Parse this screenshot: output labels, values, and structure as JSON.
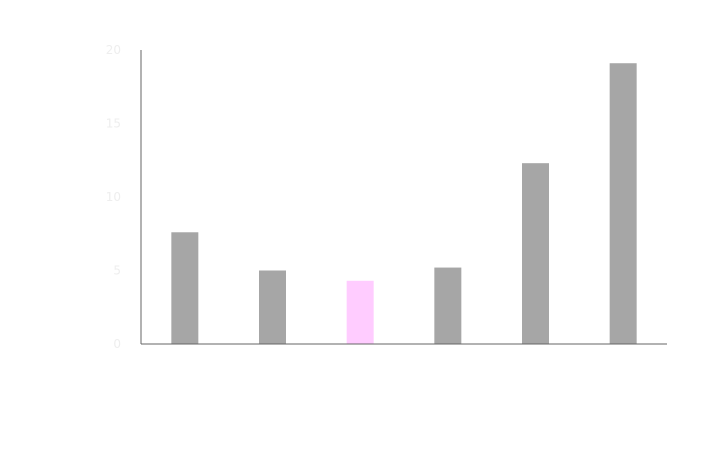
{
  "chart_data": {
    "type": "bar",
    "categories": [
      "",
      "",
      "",
      "",
      "",
      ""
    ],
    "values": [
      7.6,
      5.0,
      4.3,
      5.2,
      12.3,
      19.1
    ],
    "highlight_index": 2,
    "colors": {
      "bar": "#a6a6a6",
      "highlight": "#ffccff",
      "axis": "#666666",
      "tick_label": "#eeeeee"
    },
    "ylim": [
      0,
      20
    ],
    "yticks": [
      "0",
      "5",
      "10",
      "15",
      "20"
    ],
    "title": "",
    "xlabel": "",
    "ylabel": "",
    "grid": false,
    "legend": "none"
  }
}
